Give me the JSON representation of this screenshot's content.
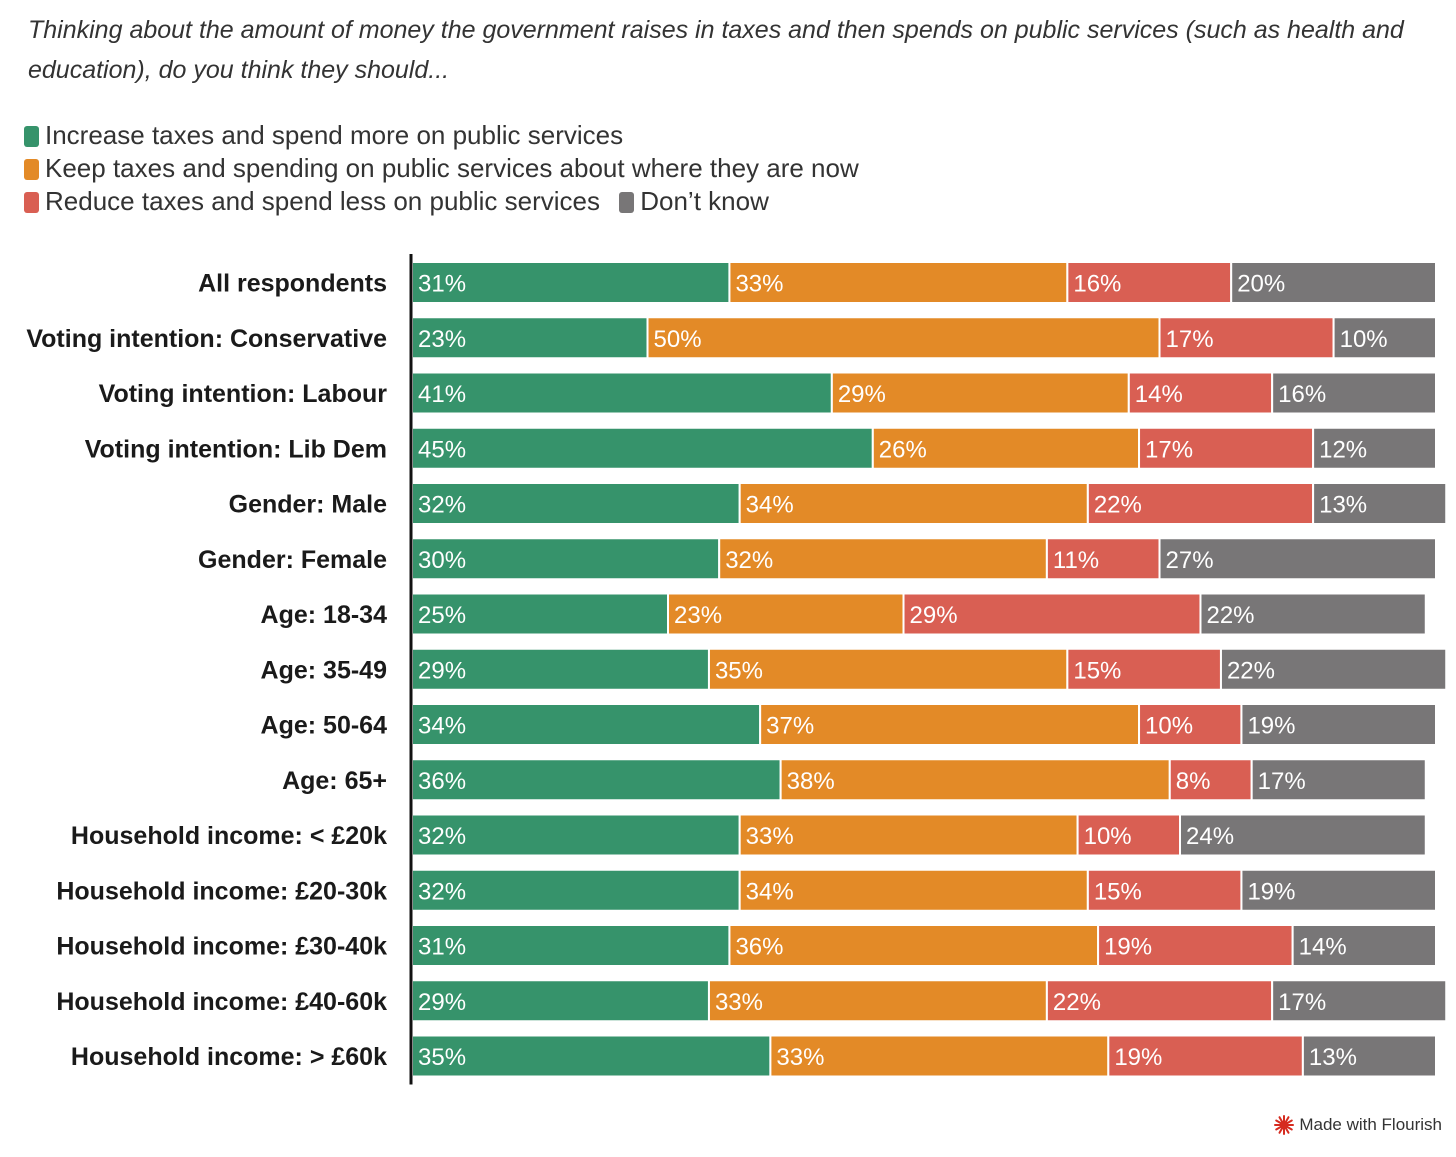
{
  "chart_data": {
    "type": "bar",
    "orientation": "horizontal",
    "stacked": true,
    "subtitle": "Thinking about the amount of money the government raises in taxes and then spends on public services (such as health and education), do you think they should...",
    "categories": [
      "All respondents",
      "Voting intention: Conservative",
      "Voting intention: Labour",
      "Voting intention: Lib Dem",
      "Gender: Male",
      "Gender: Female",
      "Age: 18-34",
      "Age: 35-49",
      "Age: 50-64",
      "Age: 65+",
      "Household income: < £20k",
      "Household income: £20-30k",
      "Household income: £30-40k",
      "Household income: £40-60k",
      "Household income: > £60k"
    ],
    "series": [
      {
        "name": "Increase taxes and spend more on public services",
        "color": "#36936b",
        "values": [
          31,
          23,
          41,
          45,
          32,
          30,
          25,
          29,
          34,
          36,
          32,
          32,
          31,
          29,
          35
        ]
      },
      {
        "name": "Keep taxes and spending on public services about where they are now",
        "color": "#e38a27",
        "values": [
          33,
          50,
          29,
          26,
          34,
          32,
          23,
          35,
          37,
          38,
          33,
          34,
          36,
          33,
          33
        ]
      },
      {
        "name": "Reduce taxes and spend less on public services",
        "color": "#d95f53",
        "values": [
          16,
          17,
          14,
          17,
          22,
          11,
          29,
          15,
          10,
          8,
          10,
          15,
          19,
          22,
          19
        ]
      },
      {
        "name": "Don’t know",
        "color": "#787677",
        "values": [
          20,
          10,
          16,
          12,
          13,
          27,
          22,
          22,
          19,
          17,
          24,
          19,
          14,
          17,
          13
        ]
      }
    ],
    "value_suffix": "%",
    "xlim": [
      0,
      100
    ],
    "legend_position": "top-left",
    "grid": false
  },
  "legend_rows": [
    [
      0,
      1
    ],
    [
      2,
      3
    ]
  ],
  "footer": {
    "credit": "Made with Flourish",
    "icon": "flourish-logo-icon",
    "icon_color": "#d62b1f"
  }
}
